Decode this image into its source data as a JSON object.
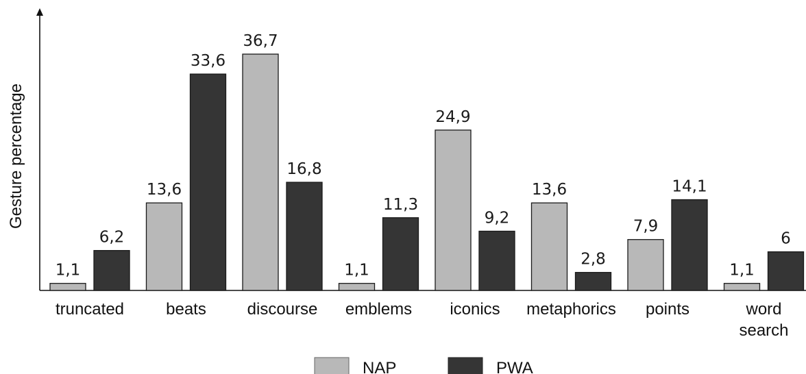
{
  "chart_data": {
    "type": "bar",
    "title": "",
    "xlabel": "",
    "ylabel": "Gesture percentage",
    "ylim": [
      0,
      36.7
    ],
    "grid": false,
    "legend_position": "bottom-center",
    "categories": [
      [
        "truncated"
      ],
      [
        "beats"
      ],
      [
        "discourse"
      ],
      [
        "emblems"
      ],
      [
        "iconics"
      ],
      [
        "metaphorics"
      ],
      [
        "points"
      ],
      [
        "word",
        "search"
      ]
    ],
    "series": [
      {
        "name": "NAP",
        "color": "#b8b8b8",
        "values": [
          1.1,
          13.6,
          36.7,
          1.1,
          24.9,
          13.6,
          7.9,
          1.1
        ],
        "labels": [
          "1,1",
          "13,6",
          "36,7",
          "1,1",
          "24,9",
          "13,6",
          "7,9",
          "1,1"
        ]
      },
      {
        "name": "PWA",
        "color": "#353535",
        "values": [
          6.2,
          33.6,
          16.8,
          11.3,
          9.2,
          2.8,
          14.1,
          6
        ],
        "labels": [
          "6,2",
          "33,6",
          "16,8",
          "11,3",
          "9,2",
          "2,8",
          "14,1",
          "6"
        ]
      }
    ]
  }
}
